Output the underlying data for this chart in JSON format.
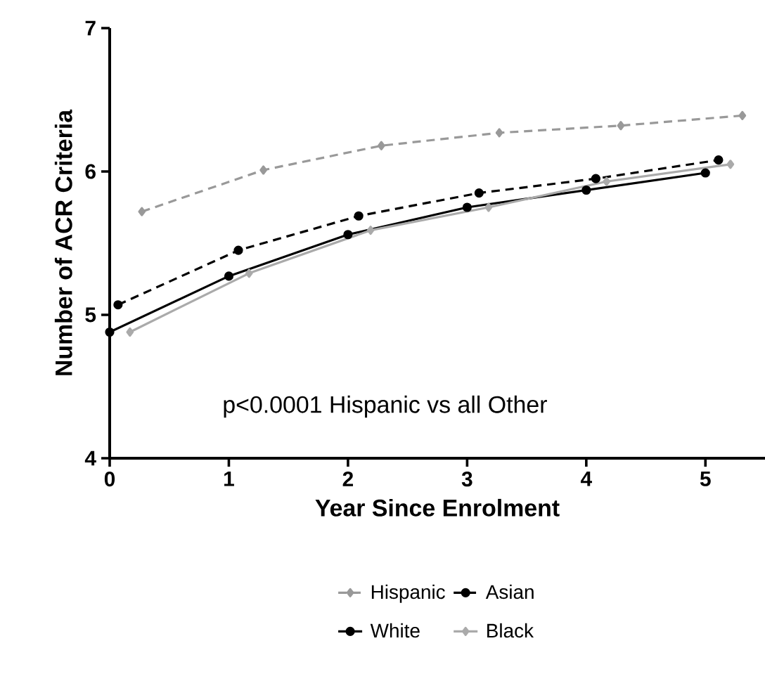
{
  "chart_data": {
    "type": "line",
    "xlabel": "Year Since Enrolment",
    "ylabel": "Number of ACR Criteria",
    "xlim": [
      0,
      5.5
    ],
    "xticks": [
      0,
      1,
      2,
      3,
      4,
      5
    ],
    "ylim": [
      4,
      7
    ],
    "yticks": [
      4,
      5,
      6,
      7
    ],
    "grid": false,
    "legend": "bottom",
    "annotations": [
      "p<0.0001  Hispanic vs all Other"
    ],
    "series": [
      {
        "name": "Hispanic",
        "color": "#999999",
        "marker": "diamond",
        "line_style": "dashed",
        "x": [
          0.27,
          1.29,
          2.28,
          3.27,
          4.29,
          5.31
        ],
        "values": [
          5.72,
          6.01,
          6.18,
          6.27,
          6.32,
          6.39
        ]
      },
      {
        "name": "Asian",
        "color": "#000000",
        "marker": "circle",
        "line_style": "dashed",
        "x": [
          0.07,
          1.08,
          2.09,
          3.1,
          4.08,
          5.11
        ],
        "values": [
          5.07,
          5.45,
          5.69,
          5.85,
          5.95,
          6.08
        ]
      },
      {
        "name": "White",
        "color": "#000000",
        "marker": "circle",
        "line_style": "solid",
        "x": [
          0,
          1,
          2,
          3,
          4,
          5
        ],
        "values": [
          4.88,
          5.27,
          5.56,
          5.75,
          5.87,
          5.99
        ]
      },
      {
        "name": "Black",
        "color": "#aaaaaa",
        "marker": "diamond",
        "line_style": "solid",
        "x": [
          0.17,
          1.17,
          2.19,
          3.18,
          4.17,
          5.21
        ],
        "values": [
          4.88,
          5.29,
          5.59,
          5.75,
          5.93,
          6.05
        ]
      }
    ]
  }
}
